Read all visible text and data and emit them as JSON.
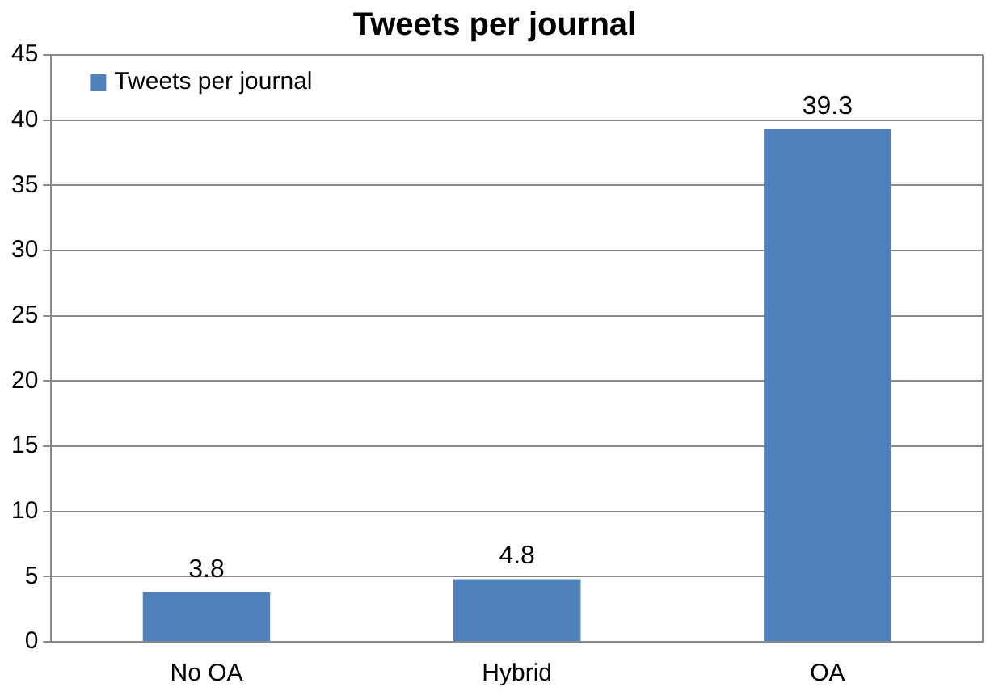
{
  "chart_data": {
    "type": "bar",
    "title": "Tweets per journal",
    "categories": [
      "No OA",
      "Hybrid",
      "OA"
    ],
    "series": [
      {
        "name": "Tweets per journal",
        "color": "#4f81bd",
        "values": [
          3.8,
          4.8,
          39.3
        ]
      }
    ],
    "ylim": [
      0,
      45
    ],
    "yticks": [
      0,
      5,
      10,
      15,
      20,
      25,
      30,
      35,
      40,
      45
    ],
    "grid": "y",
    "legend": "top left",
    "data_labels": true
  }
}
